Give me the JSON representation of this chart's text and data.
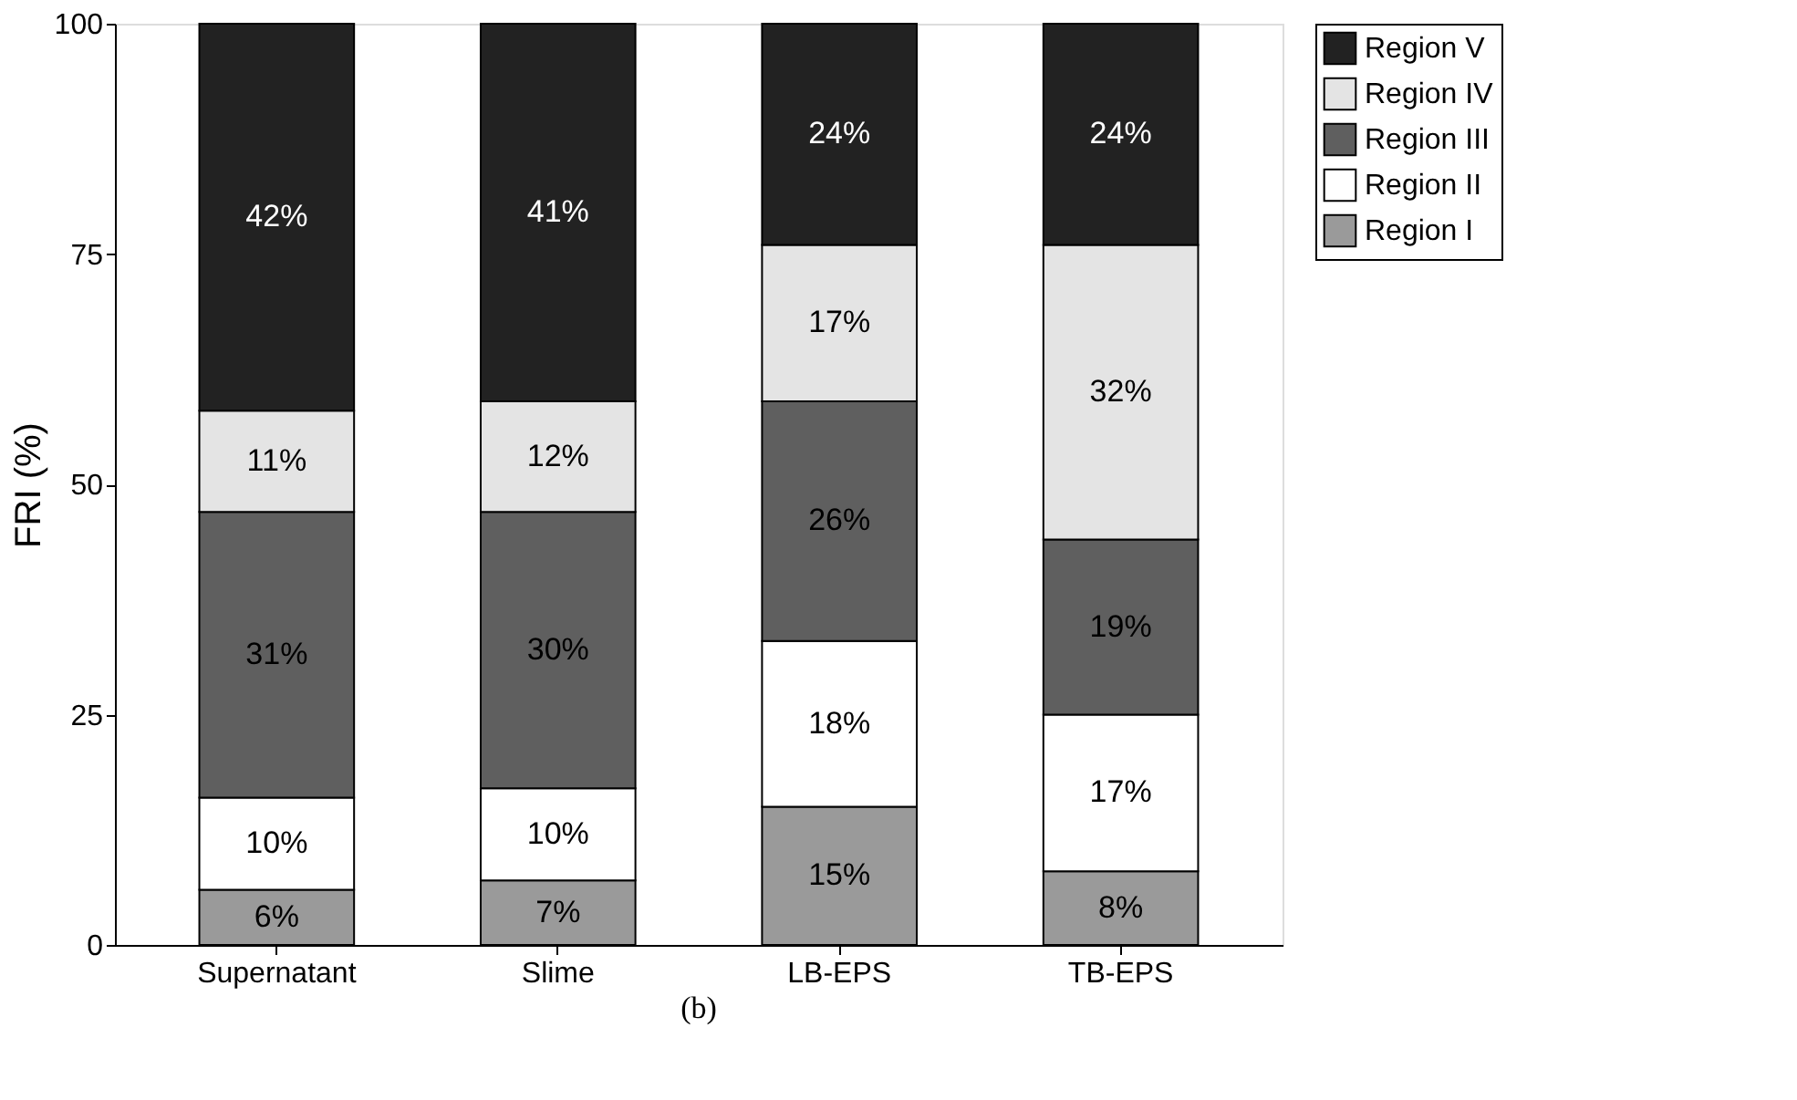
{
  "chart_data": {
    "type": "bar",
    "stacked": true,
    "ylabel": "FRI (%)",
    "categories": [
      "Supernatant",
      "Slime",
      "LB-EPS",
      "TB-EPS"
    ],
    "series": [
      {
        "name": "Region I",
        "color": "#9a9a9a",
        "values": [
          6,
          7,
          15,
          8
        ],
        "value_labels": [
          "6%",
          "7%",
          "15%",
          "8%"
        ]
      },
      {
        "name": "Region II",
        "color": "#ffffff",
        "values": [
          10,
          10,
          18,
          17
        ],
        "value_labels": [
          "10%",
          "10%",
          "18%",
          "17%"
        ]
      },
      {
        "name": "Region III",
        "color": "#5f5f5f",
        "values": [
          31,
          30,
          26,
          19
        ],
        "value_labels": [
          "31%",
          "30%",
          "26%",
          "19%"
        ]
      },
      {
        "name": "Region IV",
        "color": "#e4e4e4",
        "values": [
          11,
          12,
          17,
          32
        ],
        "value_labels": [
          "11%",
          "12%",
          "17%",
          "32%"
        ]
      },
      {
        "name": "Region V",
        "color": "#222222",
        "values": [
          42,
          41,
          24,
          24
        ],
        "value_labels": [
          "42%",
          "41%",
          "24%",
          "24%"
        ]
      }
    ],
    "ylim": [
      0,
      100
    ],
    "yticks": [
      0,
      25,
      50,
      75,
      100
    ],
    "grid": false,
    "legend": "right",
    "annotations": [
      "(b)"
    ]
  }
}
